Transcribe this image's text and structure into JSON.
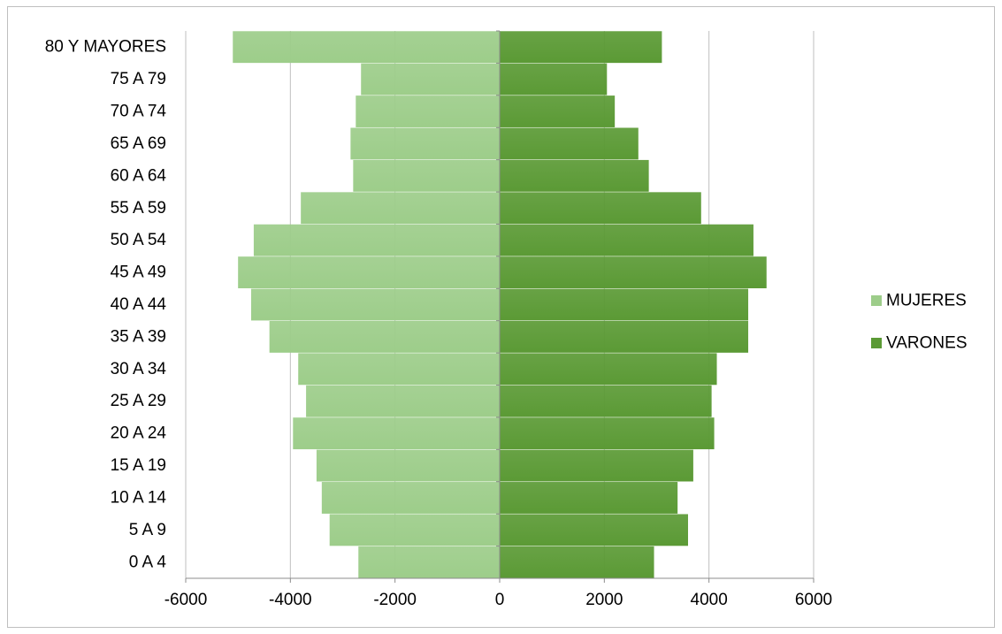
{
  "chart_data": {
    "type": "bar",
    "orientation": "horizontal",
    "stacking": "diverging",
    "title": "",
    "xlabel": "",
    "ylabel": "",
    "xlim": [
      -6000,
      6000
    ],
    "x_ticks": [
      -6000,
      -4000,
      -2000,
      0,
      2000,
      4000,
      6000
    ],
    "x_tick_labels": [
      "-6000",
      "-4000",
      "-2000",
      "0",
      "2000",
      "4000",
      "6000"
    ],
    "grid": "vertical",
    "legend_position": "right",
    "categories": [
      "0 A 4",
      "5 A 9",
      "10 A 14",
      "15 A 19",
      "20 A 24",
      "25 A 29",
      "30 A 34",
      "35 A 39",
      "40 A 44",
      "45 A 49",
      "50 A 54",
      "55 A 59",
      "60 A 64",
      "65 A 69",
      "70 A 74",
      "75 A 79",
      "80 Y MAYORES"
    ],
    "series": [
      {
        "name": "MUJERES",
        "color": "#9dcd8a",
        "values": [
          -2700,
          -3250,
          -3400,
          -3500,
          -3950,
          -3700,
          -3850,
          -4400,
          -4750,
          -5000,
          -4700,
          -3800,
          -2800,
          -2850,
          -2750,
          -2650,
          -5100
        ]
      },
      {
        "name": "VARONES",
        "color": "#5b9a35",
        "values": [
          2950,
          3600,
          3400,
          3700,
          4100,
          4050,
          4150,
          4750,
          4750,
          5100,
          4850,
          3850,
          2850,
          2650,
          2200,
          2050,
          3100
        ]
      }
    ]
  }
}
